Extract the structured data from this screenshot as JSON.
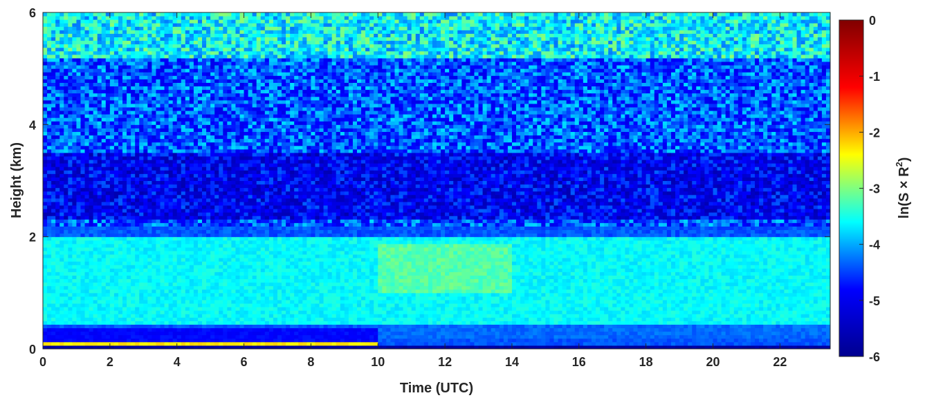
{
  "chart_data": {
    "type": "heatmap",
    "xlabel": "Time (UTC)",
    "ylabel": "Height (km)",
    "colorbar_label": "ln(S × R²)",
    "colorbar_label_parts": {
      "base": "ln(S × R",
      "sup": "2",
      "close": ")"
    },
    "xlim": [
      0,
      23.5
    ],
    "ylim": [
      0,
      6
    ],
    "clim": [
      -6,
      0
    ],
    "x_ticks": [
      0,
      2,
      4,
      6,
      8,
      10,
      12,
      14,
      16,
      18,
      20,
      22
    ],
    "y_ticks": [
      0,
      2,
      4,
      6
    ],
    "colorbar_ticks": [
      0,
      -1,
      -2,
      -3,
      -4,
      -5,
      -6
    ],
    "colormap": "jet",
    "colormap_stops": [
      "#00008f",
      "#0000ff",
      "#00ffff",
      "#ffff00",
      "#ff0000",
      "#800000"
    ],
    "layers": [
      {
        "feature": "ground bin",
        "height_km": [
          0,
          0.08
        ],
        "value": -5.8
      },
      {
        "feature": "near-surface bright band",
        "height_km": [
          0.08,
          0.15
        ],
        "time_utc": [
          0,
          10
        ],
        "value": -2.3
      },
      {
        "feature": "low dark layer",
        "height_km": [
          0.15,
          0.4
        ],
        "time_utc": [
          0,
          10
        ],
        "value": -4.8
      },
      {
        "feature": "low layer",
        "height_km": [
          0.2,
          0.45
        ],
        "time_utc": [
          10,
          23.5
        ],
        "value": -4.3
      },
      {
        "feature": "boundary layer",
        "height_km": [
          0.45,
          2.0
        ],
        "time_utc": [
          0,
          23.5
        ],
        "value": -3.6
      },
      {
        "feature": "boundary layer peak",
        "height_km": [
          1.0,
          1.9
        ],
        "time_utc": [
          10,
          14
        ],
        "value": -3.2
      },
      {
        "feature": "dark band",
        "height_km": [
          2.3,
          3.5
        ],
        "time_utc": [
          0,
          23.5
        ],
        "value": -5.0
      },
      {
        "feature": "free troposphere (noisy)",
        "height_km": [
          3.5,
          6.0
        ],
        "time_utc": [
          0,
          23.5
        ],
        "value": -4.4
      },
      {
        "feature": "upper noise",
        "height_km": [
          5.2,
          6.0
        ],
        "time_utc": [
          0,
          23.5
        ],
        "value": -3.6
      }
    ],
    "grid": false
  }
}
